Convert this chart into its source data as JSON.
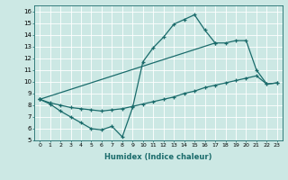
{
  "xlabel": "Humidex (Indice chaleur)",
  "xlim": [
    -0.5,
    23.5
  ],
  "ylim": [
    5,
    16.5
  ],
  "xticks": [
    0,
    1,
    2,
    3,
    4,
    5,
    6,
    7,
    8,
    9,
    10,
    11,
    12,
    13,
    14,
    15,
    16,
    17,
    18,
    19,
    20,
    21,
    22,
    23
  ],
  "yticks": [
    5,
    6,
    7,
    8,
    9,
    10,
    11,
    12,
    13,
    14,
    15,
    16
  ],
  "bg_color": "#cce8e4",
  "line_color": "#1a6b6b",
  "grid_color": "#ffffff",
  "series": [
    {
      "x": [
        0,
        1,
        2,
        3,
        4,
        5,
        6,
        7,
        8,
        9,
        10,
        11,
        12,
        13,
        14,
        15,
        16,
        17
      ],
      "y": [
        8.5,
        8.1,
        7.5,
        7.0,
        6.5,
        6.0,
        5.9,
        6.2,
        5.3,
        7.8,
        11.7,
        12.9,
        13.8,
        14.9,
        15.3,
        15.7,
        14.4,
        13.3
      ]
    },
    {
      "x": [
        0,
        1,
        2,
        3,
        4,
        5,
        6,
        7,
        8,
        9,
        10,
        11,
        12,
        13,
        14,
        15,
        16,
        17,
        18,
        19,
        20,
        21,
        22,
        23
      ],
      "y": [
        8.5,
        8.2,
        8.0,
        7.8,
        7.7,
        7.6,
        7.5,
        7.6,
        7.7,
        7.9,
        8.1,
        8.3,
        8.5,
        8.7,
        9.0,
        9.2,
        9.5,
        9.7,
        9.9,
        10.1,
        10.3,
        10.5,
        9.8,
        9.9
      ]
    },
    {
      "x": [
        0,
        17,
        18,
        19,
        20,
        21,
        22,
        23
      ],
      "y": [
        8.5,
        13.3,
        13.3,
        13.5,
        13.5,
        11.0,
        9.8,
        9.9
      ]
    }
  ]
}
